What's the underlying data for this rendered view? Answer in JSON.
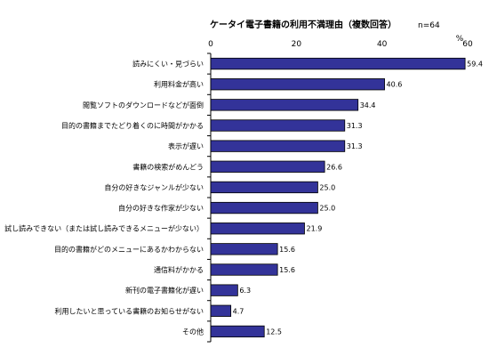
{
  "chart_data": {
    "type": "bar",
    "orientation": "horizontal",
    "title": "ケータイ電子書籍の利用不満理由（複数回答）",
    "sample_size": "n=64",
    "unit": "%",
    "xlim": [
      0,
      60
    ],
    "xticks": [
      "0",
      "20",
      "40",
      "60"
    ],
    "grid": false,
    "categories": [
      "読みにくい・見づらい",
      "利用料金が高い",
      "閲覧ソフトのダウンロードなどが面倒",
      "目的の書籍までたどり着くのに時間がかかる",
      "表示が遅い",
      "書籍の検索がめんどう",
      "自分の好きなジャンルが少ない",
      "自分の好きな作家が少ない",
      "試し読みできない（または試し読みできるメニューが少ない）",
      "目的の書籍がどのメニューにあるかわからない",
      "通信料がかかる",
      "新刊の電子書籍化が遅い",
      "利用したいと思っている書籍のお知らせがない",
      "その他"
    ],
    "values": [
      59.4,
      40.6,
      34.4,
      31.3,
      31.3,
      26.6,
      25.0,
      25.0,
      21.9,
      15.6,
      15.6,
      6.3,
      4.7,
      12.5
    ],
    "value_labels": [
      "59.4",
      "40.6",
      "34.4",
      "31.3",
      "31.3",
      "26.6",
      "25.0",
      "25.0",
      "21.9",
      "15.6",
      "15.6",
      "6.3",
      "4.7",
      "12.5"
    ],
    "colors": {
      "bar_fill": "#333399",
      "bar_stroke": "#000000",
      "axis": "#000000"
    }
  }
}
